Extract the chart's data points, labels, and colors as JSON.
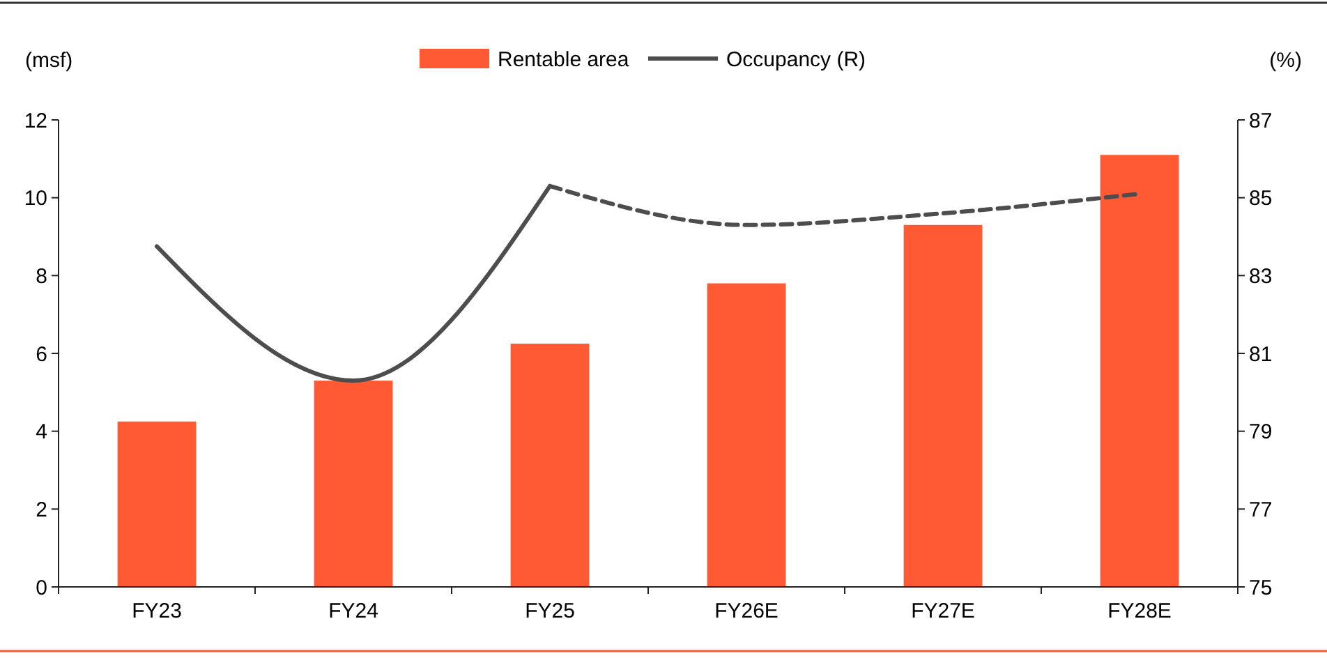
{
  "chart_data": {
    "type": "bar",
    "categories": [
      "FY23",
      "FY24",
      "FY25",
      "FY26E",
      "FY27E",
      "FY28E"
    ],
    "ylabel": "(msf)",
    "y2label": "(%)",
    "ylim": [
      0,
      12
    ],
    "yticks": [
      0,
      2,
      4,
      6,
      8,
      10,
      12
    ],
    "y2lim": [
      75,
      87
    ],
    "y2ticks": [
      75,
      77,
      79,
      81,
      83,
      85,
      87
    ],
    "legend": "top",
    "grid": false,
    "series": [
      {
        "name": "Rentable area",
        "color": "#ff5a33",
        "values": [
          4.25,
          5.3,
          6.25,
          7.8,
          9.3,
          11.1
        ]
      },
      {
        "name": "Occupancy (R)",
        "type": "line",
        "axis": "y2",
        "color": "#4d4d4d",
        "line_style": "solid",
        "values": [
          83.75,
          80.3,
          85.3,
          null,
          null,
          null
        ]
      },
      {
        "type": "line",
        "axis": "y2",
        "color": "#4d4d4d",
        "line_style": "dashed",
        "values": [
          null,
          null,
          85.3,
          84.3,
          84.6,
          85.1
        ]
      }
    ]
  }
}
